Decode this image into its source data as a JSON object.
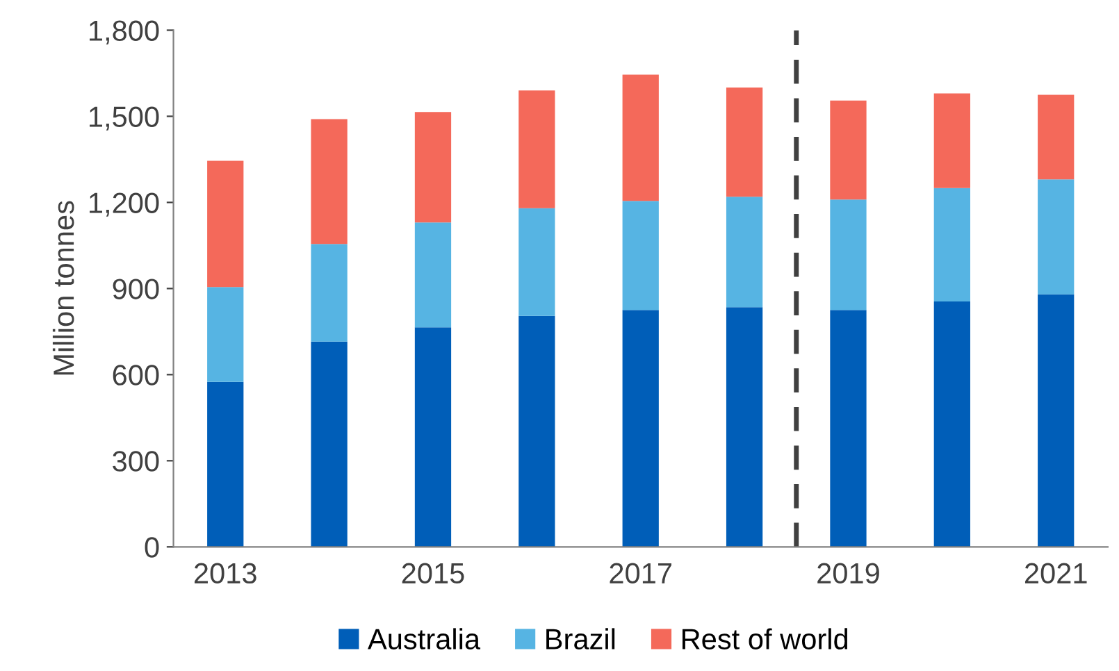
{
  "chart_data": {
    "type": "bar",
    "stacked": true,
    "ylabel": "Million tonnes",
    "x": [
      2013,
      2014,
      2015,
      2016,
      2017,
      2018,
      2019,
      2020,
      2021
    ],
    "xlim": [
      2012.5,
      2021.5
    ],
    "xticks": [
      2013,
      2015,
      2017,
      2019,
      2021
    ],
    "ylim": [
      0,
      1800
    ],
    "yticks": [
      0,
      300,
      600,
      900,
      {
        "value": 1200,
        "label": "1,200"
      },
      {
        "value": 1500,
        "label": "1,500"
      },
      {
        "value": 1800,
        "label": "1,800"
      }
    ],
    "series": [
      {
        "name": "Australia",
        "color": "#005eb8",
        "values": [
          575,
          715,
          765,
          805,
          825,
          835,
          825,
          855,
          880
        ]
      },
      {
        "name": "Brazil",
        "color": "#56b4e3",
        "values": [
          330,
          340,
          365,
          375,
          380,
          385,
          385,
          395,
          400
        ]
      },
      {
        "name": "Rest of world",
        "color": "#f4695a",
        "values": [
          440,
          435,
          385,
          410,
          440,
          380,
          345,
          330,
          295
        ]
      }
    ],
    "ref_lines": [
      {
        "axis": "x",
        "value": 2018.5,
        "color": "#404040",
        "line_style": "dashed"
      }
    ],
    "legend": "bottom",
    "grid": false
  }
}
